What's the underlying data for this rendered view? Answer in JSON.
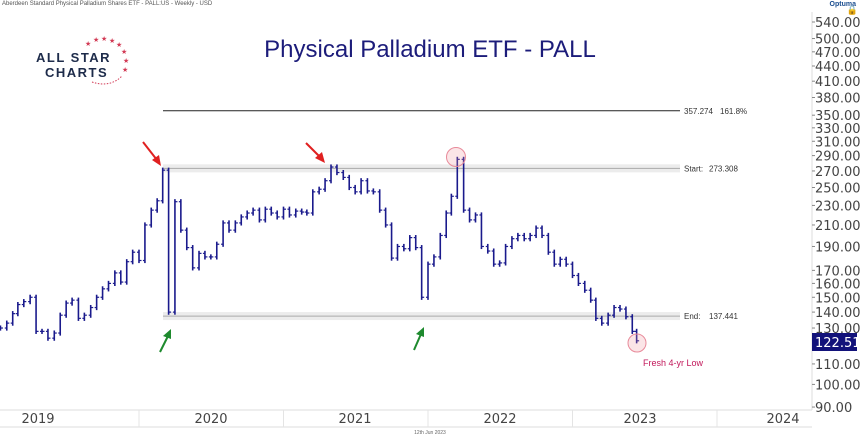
{
  "header": {
    "instrument": "Aberdeen Standard Physical Palladium Shares ETF - PALL:US - Weekly - USD",
    "vendor": "Optuma"
  },
  "logo": {
    "line1": "ALL STAR",
    "line2": "CHARTS"
  },
  "footer": {
    "date": "12th Jun 2023"
  },
  "colors": {
    "bars": "#1a1a8c",
    "title": "#1c1c7a",
    "arrow_top": "#e02020",
    "arrow_bottom": "#1e8a2e",
    "highlight": "#e88a9a",
    "annotation_text": "#c2185b",
    "price_box": "#12127a"
  },
  "chart_data": {
    "type": "line",
    "title": "Physical Palladium ETF - PALL",
    "scale": "log",
    "ylim": [
      90,
      560
    ],
    "y_ticks": [
      "540.00",
      "500.00",
      "470.00",
      "440.00",
      "410.00",
      "380.00",
      "350.00",
      "330.00",
      "310.00",
      "290.00",
      "270.00",
      "250.00",
      "230.00",
      "210.00",
      "190.00",
      "170.00",
      "160.00",
      "150.00",
      "140.00",
      "130.00",
      "110.00",
      "100.00",
      "90.00"
    ],
    "x_ticks": [
      "2019",
      "2020",
      "2021",
      "2022",
      "2023",
      "2024"
    ],
    "grid": false,
    "series": [
      {
        "dates": [
          "2019-01-16",
          "2019-02-01",
          "2019-02-16",
          "2019-03-01",
          "2019-03-16",
          "2019-04-01",
          "2019-04-16",
          "2019-05-01",
          "2019-05-16",
          "2019-06-01",
          "2019-06-16",
          "2019-07-01",
          "2019-07-16",
          "2019-08-01",
          "2019-08-16",
          "2019-09-01",
          "2019-09-16",
          "2019-10-01",
          "2019-10-16",
          "2019-11-01",
          "2019-11-16",
          "2019-12-01",
          "2019-12-16",
          "2020-01-01",
          "2020-01-16",
          "2020-02-01",
          "2020-02-16",
          "2020-03-01",
          "2020-03-16",
          "2020-04-01",
          "2020-04-16",
          "2020-05-01",
          "2020-05-16",
          "2020-06-01",
          "2020-06-16",
          "2020-07-01",
          "2020-07-16",
          "2020-08-01",
          "2020-08-16",
          "2020-09-01",
          "2020-09-16",
          "2020-10-01",
          "2020-10-16",
          "2020-11-01",
          "2020-11-16",
          "2020-12-01",
          "2020-12-16",
          "2021-01-01",
          "2021-01-16",
          "2021-02-01",
          "2021-02-16",
          "2021-03-01",
          "2021-03-16",
          "2021-04-01",
          "2021-04-16",
          "2021-05-01",
          "2021-05-16",
          "2021-06-01",
          "2021-06-16",
          "2021-07-01",
          "2021-07-16",
          "2021-08-01",
          "2021-08-16",
          "2021-09-01",
          "2021-09-16",
          "2021-10-01",
          "2021-10-16",
          "2021-11-01",
          "2021-11-16",
          "2021-12-01",
          "2021-12-16",
          "2022-01-01",
          "2022-01-16",
          "2022-02-01",
          "2022-02-16",
          "2022-03-01",
          "2022-03-16",
          "2022-04-01",
          "2022-04-16",
          "2022-05-01",
          "2022-05-16",
          "2022-06-01",
          "2022-06-16",
          "2022-07-01",
          "2022-07-16",
          "2022-08-01",
          "2022-08-16",
          "2022-09-01",
          "2022-09-16",
          "2022-10-01",
          "2022-10-16",
          "2022-11-01",
          "2022-11-16",
          "2022-12-01",
          "2022-12-16",
          "2023-01-01",
          "2023-01-16",
          "2023-02-01",
          "2023-02-16",
          "2023-03-01",
          "2023-03-16",
          "2023-04-01",
          "2023-04-16",
          "2023-05-01",
          "2023-05-16",
          "2023-06-01",
          "2023-06-12"
        ],
        "values": [
          130,
          133,
          139,
          145,
          147,
          150,
          128,
          128,
          124,
          127,
          138,
          146,
          148,
          136,
          138,
          143,
          150,
          156,
          160,
          168,
          161,
          177,
          185,
          178,
          210,
          225,
          235,
          271,
          140,
          234,
          205,
          189,
          172,
          184,
          181,
          181,
          192,
          212,
          205,
          212,
          218,
          222,
          225,
          215,
          226,
          222,
          218,
          226,
          220,
          224,
          223,
          222,
          245,
          248,
          258,
          275,
          268,
          262,
          250,
          245,
          258,
          246,
          245,
          225,
          210,
          180,
          190,
          188,
          198,
          189,
          150,
          175,
          181,
          200,
          222,
          240,
          285,
          225,
          215,
          220,
          190,
          186,
          175,
          176,
          190,
          197,
          200,
          197,
          200,
          207,
          200,
          185,
          175,
          179,
          175,
          166,
          160,
          155,
          148,
          136,
          133,
          138,
          143,
          142,
          137,
          128,
          122.51
        ]
      }
    ],
    "levels": [
      {
        "label": "",
        "value": "357.274",
        "pct": "161.8%"
      },
      {
        "label": "Start:",
        "value": "273.308",
        "pct": ""
      },
      {
        "label": "End:",
        "value": "137.441",
        "pct": ""
      }
    ],
    "annotation": "Fresh 4-yr Low",
    "last_price": "122.51"
  }
}
